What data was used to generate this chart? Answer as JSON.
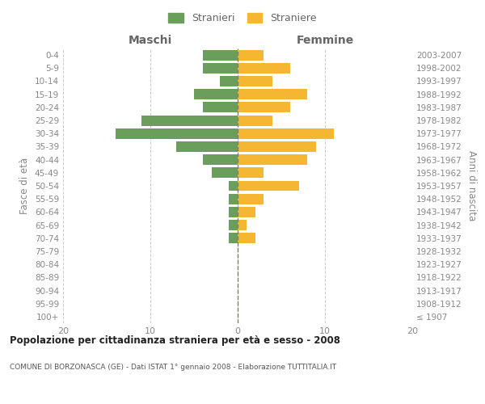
{
  "age_groups": [
    "100+",
    "95-99",
    "90-94",
    "85-89",
    "80-84",
    "75-79",
    "70-74",
    "65-69",
    "60-64",
    "55-59",
    "50-54",
    "45-49",
    "40-44",
    "35-39",
    "30-34",
    "25-29",
    "20-24",
    "15-19",
    "10-14",
    "5-9",
    "0-4"
  ],
  "birth_years": [
    "≤ 1907",
    "1908-1912",
    "1913-1917",
    "1918-1922",
    "1923-1927",
    "1928-1932",
    "1933-1937",
    "1938-1942",
    "1943-1947",
    "1948-1952",
    "1953-1957",
    "1958-1962",
    "1963-1967",
    "1968-1972",
    "1973-1977",
    "1978-1982",
    "1983-1987",
    "1988-1992",
    "1993-1997",
    "1998-2002",
    "2003-2007"
  ],
  "maschi": [
    0,
    0,
    0,
    0,
    0,
    0,
    1,
    1,
    1,
    1,
    1,
    3,
    4,
    7,
    14,
    11,
    4,
    5,
    2,
    4,
    4
  ],
  "femmine": [
    0,
    0,
    0,
    0,
    0,
    0,
    2,
    1,
    2,
    3,
    7,
    3,
    8,
    9,
    11,
    4,
    6,
    8,
    4,
    6,
    3
  ],
  "maschi_color": "#6a9e5a",
  "femmine_color": "#f5b731",
  "title": "Popolazione per cittadinanza straniera per età e sesso - 2008",
  "subtitle": "COMUNE DI BORZONASCA (GE) - Dati ISTAT 1° gennaio 2008 - Elaborazione TUTTITALIA.IT",
  "ylabel_left": "Fasce di età",
  "ylabel_right": "Anni di nascita",
  "xlabel_left": "Maschi",
  "xlabel_right": "Femmine",
  "legend_maschi": "Stranieri",
  "legend_femmine": "Straniere",
  "xlim": 20,
  "background_color": "#ffffff",
  "grid_color": "#cccccc",
  "bar_height": 0.8,
  "center_line_color": "#808060",
  "tick_label_color": "#888888",
  "header_label_color": "#666666",
  "title_color": "#222222",
  "subtitle_color": "#555555"
}
